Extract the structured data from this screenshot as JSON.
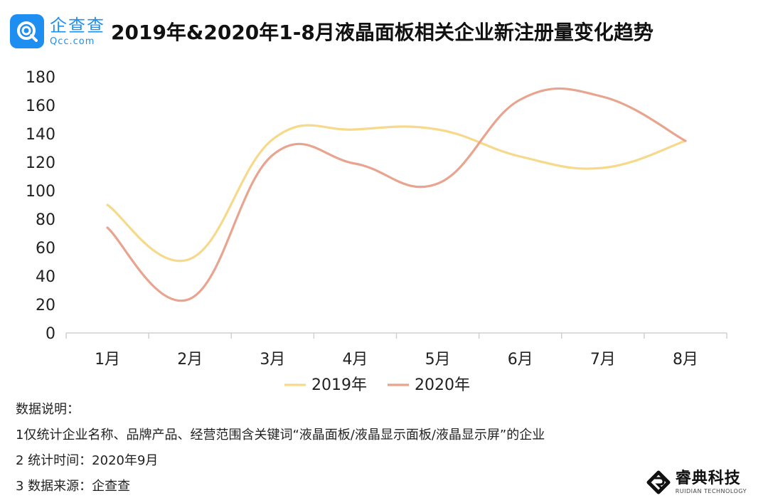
{
  "header": {
    "logo_cn": "企查查",
    "logo_en": "Qcc.com",
    "title": "2019年&2020年1-8月液晶面板相关企业新注册量变化趋势"
  },
  "chart_data": {
    "type": "line",
    "smooth": true,
    "categories": [
      "1月",
      "2月",
      "3月",
      "4月",
      "5月",
      "6月",
      "7月",
      "8月"
    ],
    "series": [
      {
        "name": "2019年",
        "color": "#f6d98a",
        "values": [
          90,
          52,
          136,
          143,
          143,
          124,
          116,
          135
        ]
      },
      {
        "name": "2020年",
        "color": "#e8a48e",
        "values": [
          74,
          24,
          125,
          119,
          105,
          164,
          166,
          135
        ]
      }
    ],
    "ylim": [
      0,
      180
    ],
    "yticks": [
      0,
      20,
      40,
      60,
      80,
      100,
      120,
      140,
      160,
      180
    ],
    "grid": false,
    "legend_position": "bottom"
  },
  "notes": [
    "数据说明：",
    "1仅统计企业名称、品牌产品、经营范围含关键词“液晶面板/液晶显示面板/液晶显示屏”的企业",
    "2 统计时间：2020年9月",
    "3 数据来源：企查查"
  ],
  "brand": {
    "name_cn": "睿典科技",
    "name_en": "RUIDIAN TECHNOLOGY"
  }
}
